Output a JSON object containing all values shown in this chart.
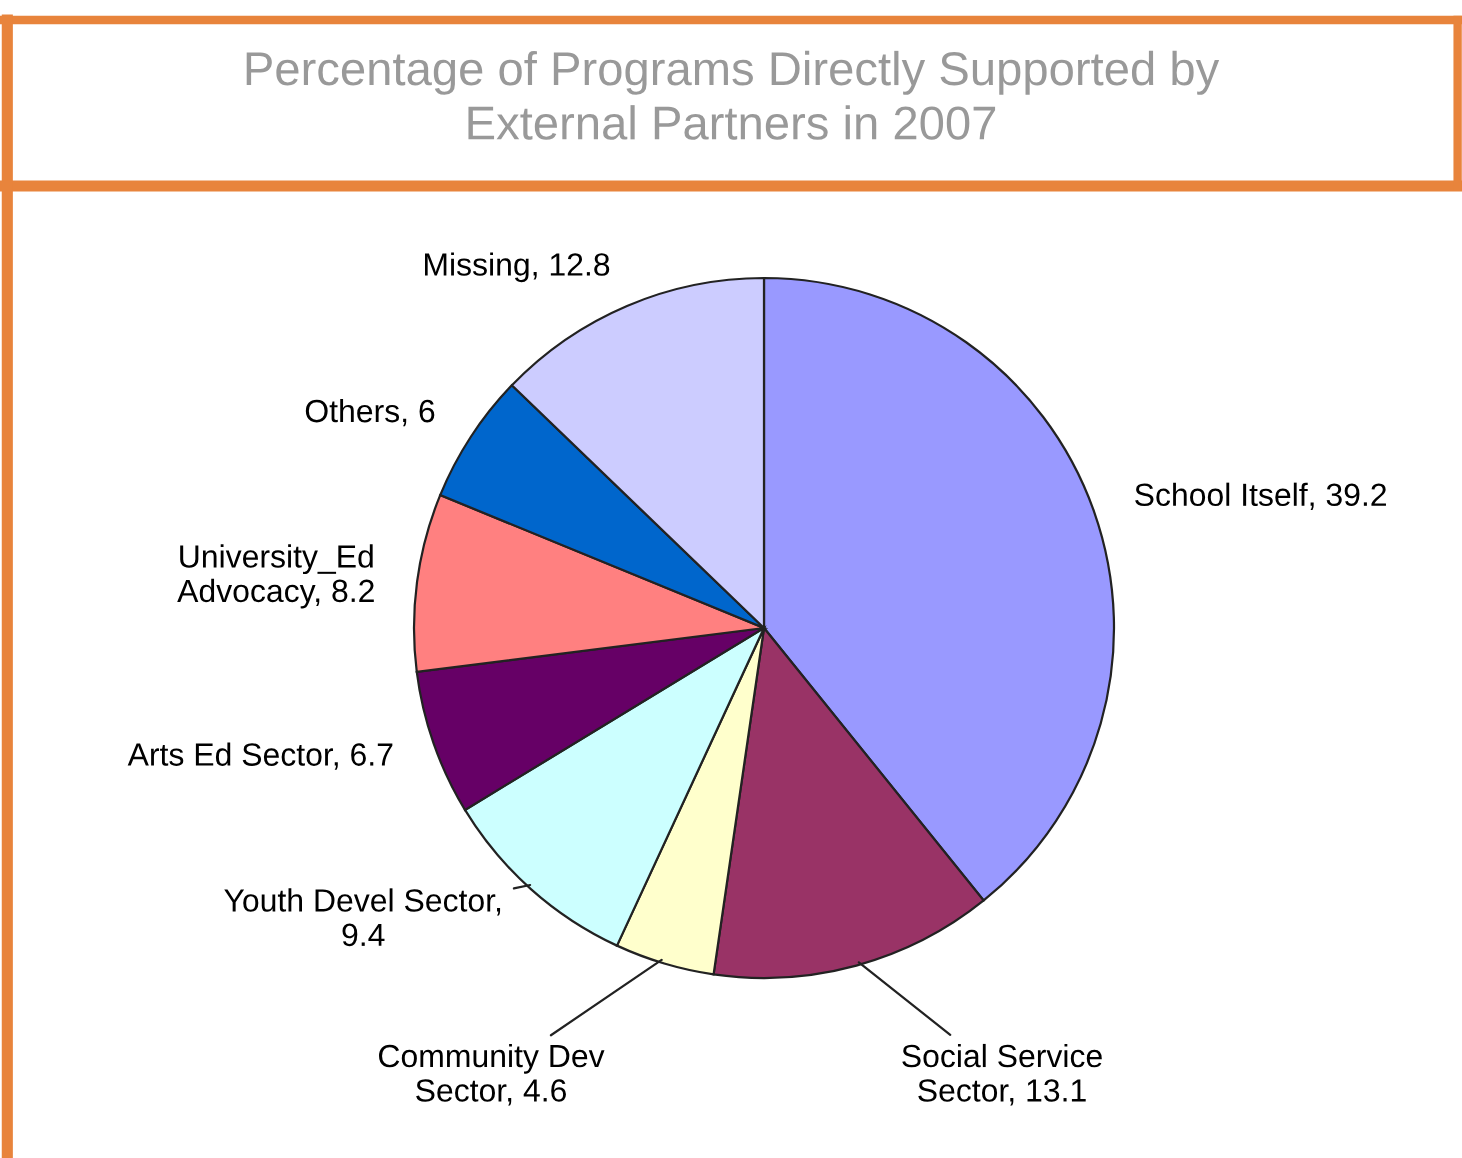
{
  "chart_data": {
    "type": "pie",
    "title": "Percentage of Programs Directly Supported by\nExternal Partners in 2007",
    "categories": [
      "School Itself",
      "Social Service\nSector",
      "Community Dev\nSector",
      "Youth Devel Sector",
      "Arts Ed Sector",
      "University_Ed\nAdvocacy",
      "Others",
      "Missing"
    ],
    "value_labels": [
      ", 39.2",
      ", 13.1",
      ", 4.6",
      ",\n9.4",
      ", 6.7",
      ", 8.2",
      ", 6",
      ", 12.8"
    ],
    "values": [
      39.2,
      13.1,
      4.6,
      9.4,
      6.7,
      8.2,
      6,
      12.8
    ],
    "colors": [
      "#9999ff",
      "#993366",
      "#ffffcc",
      "#ccffff",
      "#660066",
      "#ff8080",
      "#0066cc",
      "#ccccff"
    ],
    "legend": false
  }
}
